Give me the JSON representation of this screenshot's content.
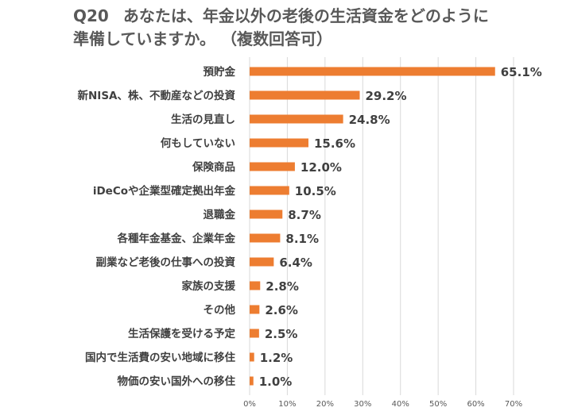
{
  "title": {
    "number": "Q20",
    "line1": "あなたは、年金以外の老後の生活資金をどのように",
    "line2": "準備していますか。 （複数回答可）"
  },
  "chart_data": {
    "type": "bar",
    "orientation": "horizontal",
    "title": "Q20 あなたは、年金以外の老後の生活資金をどのように準備していますか。 （複数回答可）",
    "xlabel": "",
    "ylabel": "",
    "xlim": [
      0,
      70
    ],
    "grid": true,
    "legend": "none",
    "bar_color": "#ED7D31",
    "grid_color": "#D9D9D9",
    "ticks": [
      "0%",
      "10%",
      "20%",
      "30%",
      "40%",
      "50%",
      "60%",
      "70%"
    ],
    "tick_values": [
      0,
      10,
      20,
      30,
      40,
      50,
      60,
      70
    ],
    "categories": [
      "預貯金",
      "新NISA、株、不動産などの投資",
      "生活の見直し",
      "何もしていない",
      "保険商品",
      "iDeCoや企業型確定拠出年金",
      "退職金",
      "各種年金基金、企業年金",
      "副業など老後の仕事への投資",
      "家族の支援",
      "その他",
      "生活保護を受ける予定",
      "国内で生活費の安い地域に移住",
      "物価の安い国外への移住"
    ],
    "values": [
      65.1,
      29.2,
      24.8,
      15.6,
      12.0,
      10.5,
      8.7,
      8.1,
      6.4,
      2.8,
      2.6,
      2.5,
      1.2,
      1.0
    ],
    "value_labels": [
      "65.1%",
      "29.2%",
      "24.8%",
      "15.6%",
      "12.0%",
      "10.5%",
      "8.7%",
      "8.1%",
      "6.4%",
      "2.8%",
      "2.6%",
      "2.5%",
      "1.2%",
      "1.0%"
    ]
  }
}
